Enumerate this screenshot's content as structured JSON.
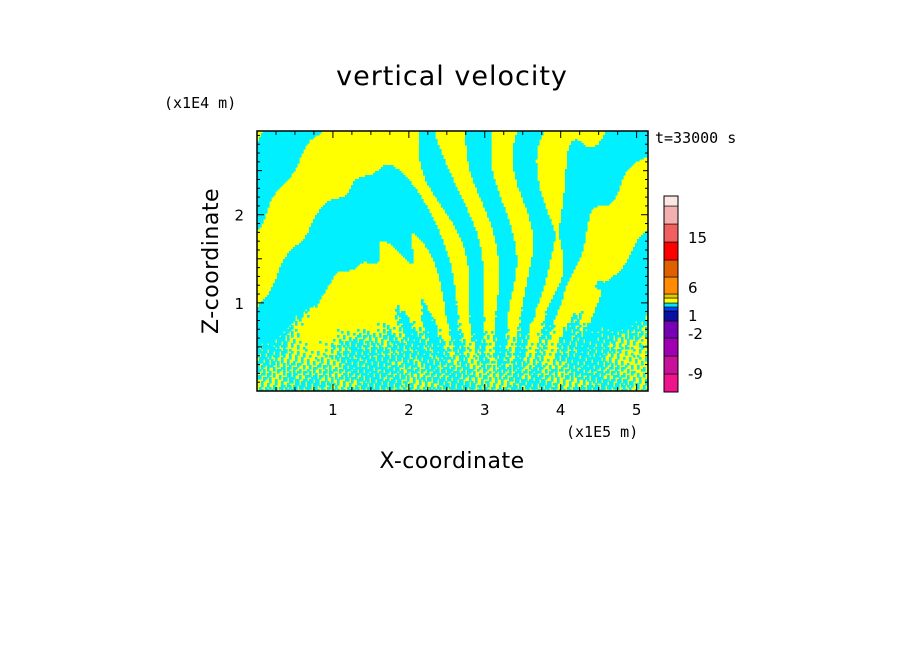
{
  "chart_data": {
    "type": "heatmap",
    "title": "vertical velocity",
    "xlabel": "X-coordinate",
    "ylabel": "Z-coordinate",
    "x_unit": "(x1E5 m)",
    "y_unit": "(x1E4 m)",
    "time_label": "t=33000 s",
    "xlim": [
      0,
      5.15
    ],
    "ylim": [
      0,
      2.95
    ],
    "x_ticks": [
      "1",
      "2",
      "3",
      "4",
      "5"
    ],
    "y_ticks": [
      "1",
      "2"
    ],
    "field_description": "alternating updraft / downdraft bands of vertical velocity",
    "colorbar": {
      "levels": [
        {
          "color": "#f0148c"
        },
        {
          "color": "#c8109a"
        },
        {
          "color": "#a000b4"
        },
        {
          "color": "#7800b4"
        },
        {
          "color": "#0a10a0"
        },
        {
          "color": "#0040ff"
        },
        {
          "color": "#00e6ff"
        },
        {
          "color": "#ffff00"
        },
        {
          "color": "#e6c800"
        },
        {
          "color": "#ff8c00"
        },
        {
          "color": "#e06000"
        },
        {
          "color": "#ff0000"
        },
        {
          "color": "#f06060"
        },
        {
          "color": "#f4b0b0"
        },
        {
          "color": "#fbe8e4"
        }
      ],
      "tick_labels": [
        "-9",
        "-2",
        "1",
        "6",
        "15"
      ]
    },
    "dominant_colors": {
      "positive": "#ffff00",
      "negative": "#00f0ff"
    }
  }
}
